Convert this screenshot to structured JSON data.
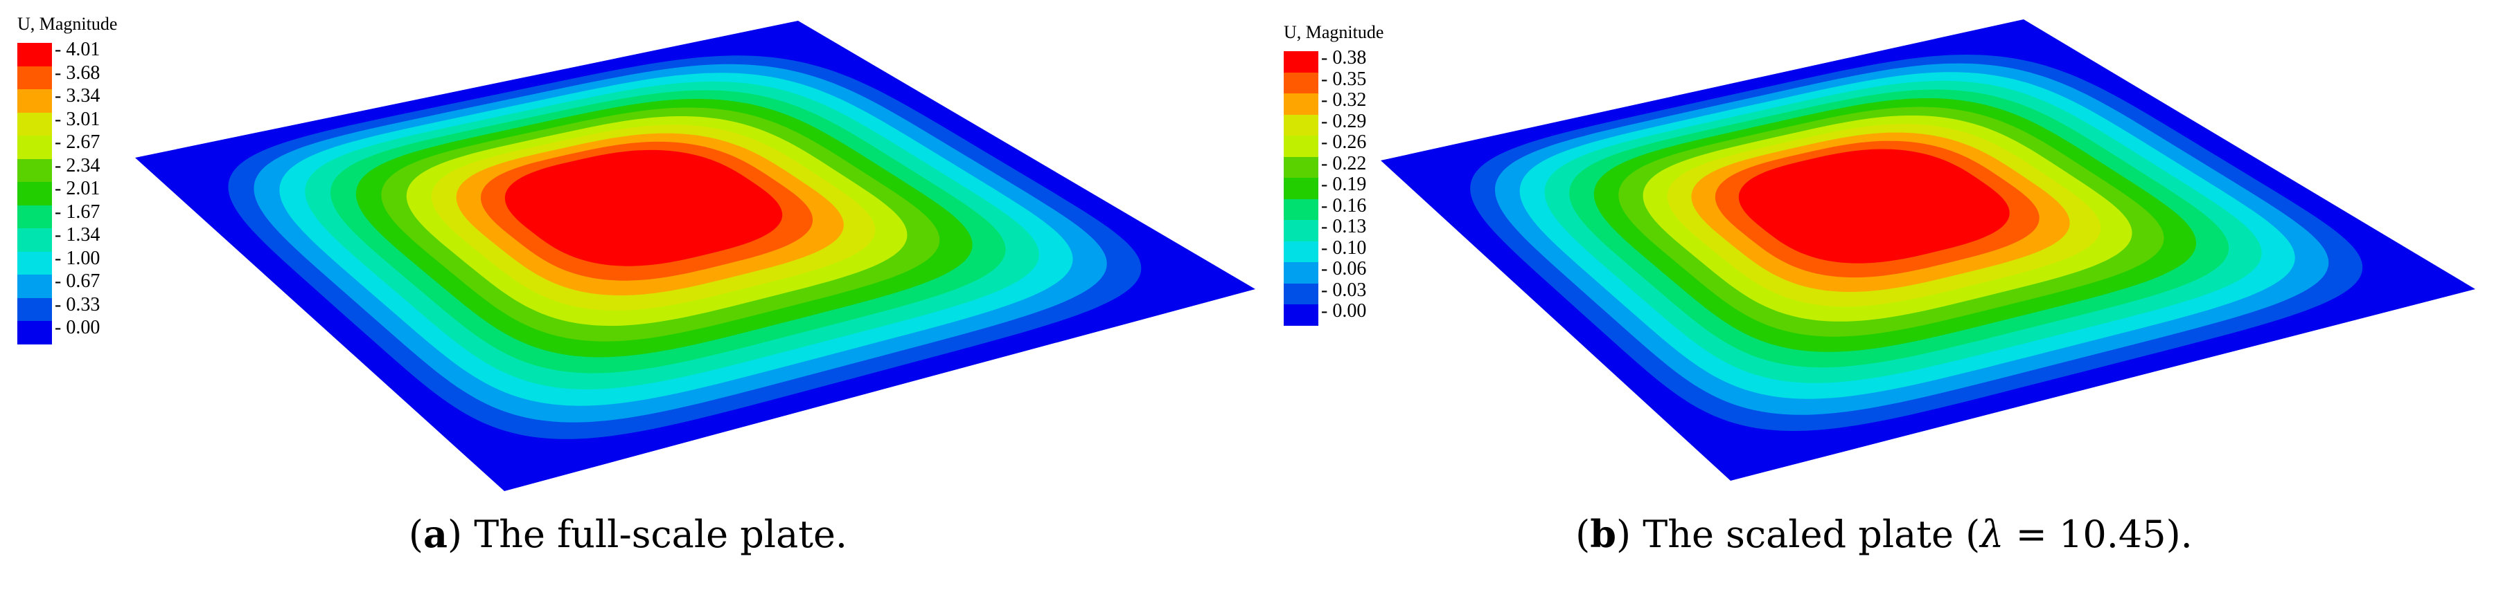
{
  "panels": [
    {
      "legend_title": "U, Magnitude",
      "legend_labels": [
        "4.01",
        "3.68",
        "3.34",
        "3.01",
        "2.67",
        "2.34",
        "2.01",
        "1.67",
        "1.34",
        "1.00",
        "0.67",
        "0.33",
        "0.00"
      ],
      "caption_letter": "a",
      "caption_text": "The full-scale plate."
    },
    {
      "legend_title": "U, Magnitude",
      "legend_labels": [
        "0.38",
        "0.35",
        "0.32",
        "0.29",
        "0.26",
        "0.22",
        "0.19",
        "0.16",
        "0.13",
        "0.10",
        "0.06",
        "0.03",
        "0.00"
      ],
      "caption_letter": "b",
      "caption_text_before": "The scaled plate (",
      "caption_symbol": "λ",
      "caption_text_after": " = 10.45)."
    }
  ],
  "colormap": [
    "#ff0000",
    "#ff5a00",
    "#ffa500",
    "#d7e600",
    "#c0f000",
    "#5ad200",
    "#22cd00",
    "#00e070",
    "#00e5b0",
    "#00e0e5",
    "#00a0f0",
    "#0050e8",
    "#0000ee"
  ]
}
